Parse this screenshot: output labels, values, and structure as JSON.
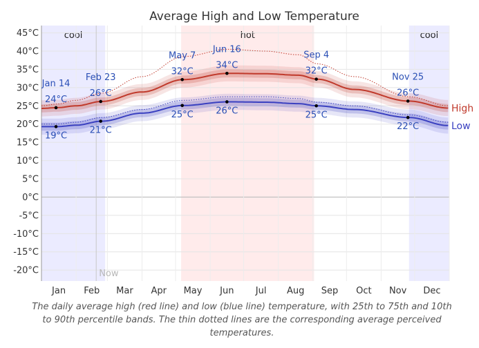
{
  "chart_data": {
    "type": "line",
    "title": "Average High and Low Temperature",
    "y_unit": "°C",
    "ylim": [
      -23,
      47
    ],
    "y_ticks": [
      "45°C",
      "40°C",
      "35°C",
      "30°C",
      "25°C",
      "20°C",
      "15°C",
      "10°C",
      "5°C",
      "0°C",
      "-5°C",
      "-10°C",
      "-15°C",
      "-20°C"
    ],
    "y_tick_values": [
      45,
      40,
      35,
      30,
      25,
      20,
      15,
      10,
      5,
      0,
      -5,
      -10,
      -15,
      -20
    ],
    "months": [
      "Jan",
      "Feb",
      "Mar",
      "Apr",
      "May",
      "Jun",
      "Jul",
      "Aug",
      "Sep",
      "Oct",
      "Nov",
      "Dec"
    ],
    "seasons": [
      {
        "label": "cool",
        "start_day": 0,
        "end_day": 57,
        "color": "#ebebff"
      },
      {
        "label": "hot",
        "start_day": 125,
        "end_day": 244,
        "color": "#ffebeb"
      },
      {
        "label": "cool",
        "start_day": 329,
        "end_day": 365,
        "color": "#ebebff"
      }
    ],
    "now": {
      "label": "Now",
      "day": 49
    },
    "high": {
      "name": "High",
      "color": "#c0392b",
      "days": [
        0,
        14,
        31,
        54,
        90,
        127,
        167,
        200,
        230,
        247,
        280,
        329,
        364
      ],
      "values": [
        24.3,
        24.5,
        25.0,
        26.2,
        28.8,
        32.2,
        33.9,
        33.8,
        33.4,
        32.3,
        29.5,
        26.3,
        24.4
      ],
      "perceived": [
        25,
        25.5,
        26.5,
        28.5,
        33,
        38.5,
        40.5,
        40,
        39,
        36.5,
        33,
        27.5,
        25
      ]
    },
    "low": {
      "name": "Low",
      "color": "#3a40c0",
      "days": [
        0,
        14,
        31,
        54,
        90,
        127,
        167,
        200,
        230,
        247,
        280,
        329,
        364
      ],
      "values": [
        19.3,
        19.3,
        19.7,
        20.8,
        23.0,
        25.1,
        26.1,
        26.0,
        25.6,
        25.0,
        24.0,
        21.8,
        19.6
      ],
      "perceived": [
        20,
        20,
        20.5,
        21.8,
        24,
        26.5,
        27.5,
        27.5,
        27,
        26,
        25,
        22.5,
        20.5
      ]
    },
    "annotations": [
      {
        "date": "Jan 14",
        "high": "24°C",
        "low": "19°C"
      },
      {
        "date": "Feb 23",
        "high": "26°C",
        "low": "21°C"
      },
      {
        "date": "May 7",
        "high": "32°C",
        "low": "25°C"
      },
      {
        "date": "Jun 16",
        "high": "34°C",
        "low": "26°C"
      },
      {
        "date": "Sep 4",
        "high": "32°C",
        "low": "25°C"
      },
      {
        "date": "Nov 25",
        "high": "26°C",
        "low": "22°C"
      }
    ],
    "annotation_days": [
      13,
      53,
      126,
      166,
      246,
      328
    ],
    "caption": "The daily average high (red line) and low (blue line) temperature, with 25th to 75th and 10th to 90th percentile bands. The thin dotted lines are the corresponding average perceived temperatures."
  }
}
